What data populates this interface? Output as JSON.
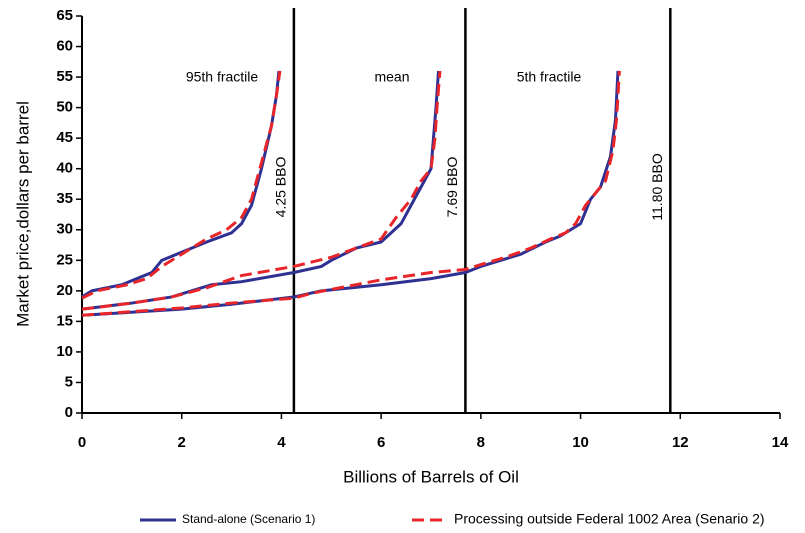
{
  "chart_data": {
    "type": "line",
    "x_label": "Billions of Barrels of Oil",
    "y_label": "Market price,dollars per barrel",
    "xlim": [
      0,
      14
    ],
    "xticks": [
      0,
      2,
      4,
      6,
      8,
      10,
      12,
      14
    ],
    "ylim": [
      0,
      65
    ],
    "yticks": [
      0,
      5,
      10,
      15,
      20,
      25,
      30,
      35,
      40,
      45,
      50,
      55,
      60,
      65
    ],
    "annotations": [
      "95th fractile",
      "mean",
      "5th fractile"
    ],
    "reference_lines": [
      {
        "value": 4.25,
        "label": "4.25 BBO"
      },
      {
        "value": 7.69,
        "label": "7.69 BBO"
      },
      {
        "value": 11.8,
        "label": "11.80 BBO"
      }
    ],
    "series": [
      {
        "name": "Stand-alone (Scenario 1)",
        "color": "#2e3192",
        "dashed": false,
        "lines": [
          {
            "x": [
              0,
              0.2,
              0.8,
              1.4,
              1.6,
              2.2,
              2.5,
              3,
              3.2,
              3.4,
              3.6,
              3.8,
              3.9,
              3.95
            ],
            "values": [
              19,
              20,
              21,
              23,
              25,
              27,
              28,
              29.5,
              31,
              34,
              40,
              47,
              52,
              56
            ]
          },
          {
            "x": [
              0,
              1,
              1.8,
              2.2,
              2.6,
              3.2,
              4.25,
              4.8,
              5,
              5.5,
              6,
              6.4,
              6.6,
              6.8,
              7,
              7.05,
              7.1,
              7.15
            ],
            "values": [
              17,
              18,
              19,
              20,
              21,
              21.5,
              23,
              24,
              25,
              27,
              28,
              31,
              34,
              37,
              40,
              45,
              50,
              56
            ]
          },
          {
            "x": [
              0,
              2,
              3,
              4.25,
              4.8,
              6,
              7,
              7.69,
              8,
              8.4,
              8.8,
              9.3,
              9.6,
              9.8,
              10,
              10.2,
              10.4,
              10.6,
              10.7,
              10.75
            ],
            "values": [
              16,
              17,
              17.8,
              19,
              20,
              21,
              22,
              23,
              24,
              25,
              26,
              28,
              29,
              30,
              31,
              35,
              37,
              42,
              48,
              56
            ]
          }
        ]
      },
      {
        "name": "Processing outside Federal 1002 Area (Senario 2)",
        "color": "#e8262a",
        "dashed": true,
        "lines": [
          {
            "x": [
              0,
              0.3,
              0.9,
              1.3,
              1.6,
              2.1,
              2.5,
              2.9,
              3.2,
              3.4,
              3.6,
              3.8,
              3.9,
              3.97
            ],
            "values": [
              18.8,
              20,
              21,
              22,
              24,
              26.5,
              28.5,
              30,
              32,
              35,
              41,
              47,
              52,
              56
            ]
          },
          {
            "x": [
              0,
              1,
              1.8,
              2.5,
              3.2,
              4.25,
              5,
              5.5,
              6,
              6.3,
              6.6,
              6.8,
              7,
              7.08,
              7.12,
              7.18
            ],
            "values": [
              17,
              18,
              19,
              20.5,
              22.5,
              24,
              25.5,
              27,
              28.5,
              32,
              35,
              38,
              40,
              45,
              50,
              56
            ]
          },
          {
            "x": [
              0,
              2,
              3,
              4.25,
              4.6,
              6,
              7,
              7.69,
              8,
              8.5,
              9,
              9.4,
              9.7,
              9.9,
              10.1,
              10.3,
              10.5,
              10.65,
              10.72,
              10.78
            ],
            "values": [
              16,
              17.2,
              18,
              18.8,
              19.6,
              21.8,
              23,
              23.5,
              24.3,
              25.5,
              27,
              28.5,
              29.5,
              31,
              34,
              36,
              38,
              43,
              48,
              56
            ]
          }
        ]
      }
    ]
  }
}
